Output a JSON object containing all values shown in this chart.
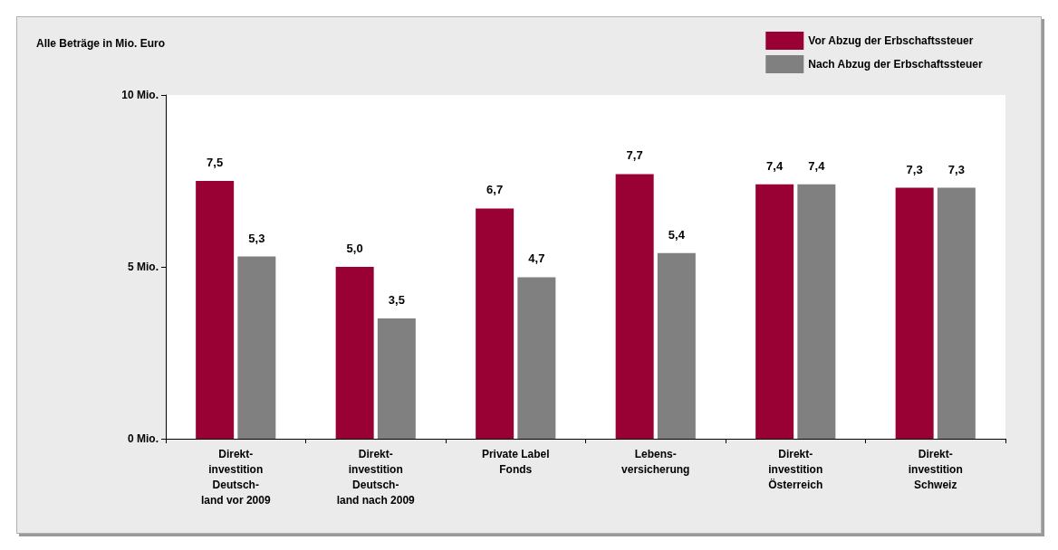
{
  "chart_data": {
    "type": "bar",
    "title": "Alle Beträge in Mio. Euro",
    "categories": [
      "Direkt-\ninvestition\nDeutsch-\nland vor 2009",
      "Direkt-\ninvestition\nDeutsch-\nland nach 2009",
      "Private Label\nFonds",
      "Lebens-\nversicherung",
      "Direkt-\ninvestition\nÖsterreich",
      "Direkt-\ninvestition\nSchweiz"
    ],
    "series": [
      {
        "name": "Vor Abzug der Erbschaftssteuer",
        "color": "#990033",
        "values": [
          7.5,
          5.0,
          6.7,
          7.7,
          7.4,
          7.3
        ],
        "value_labels": [
          "7,5",
          "5,0",
          "6,7",
          "7,7",
          "7,4",
          "7,3"
        ]
      },
      {
        "name": "Nach Abzug der Erbschaftssteuer",
        "color": "#808080",
        "values": [
          5.3,
          3.5,
          4.7,
          5.4,
          7.4,
          7.3
        ],
        "value_labels": [
          "5,3",
          "3,5",
          "4,7",
          "5,4",
          "7,4",
          "7,3"
        ]
      }
    ],
    "ylim": [
      0,
      10
    ],
    "yticks": [
      {
        "value": 0,
        "label": "0 Mio."
      },
      {
        "value": 5,
        "label": "5 Mio."
      },
      {
        "value": 10,
        "label": "10 Mio."
      }
    ],
    "grid": false,
    "legend": "top right"
  }
}
